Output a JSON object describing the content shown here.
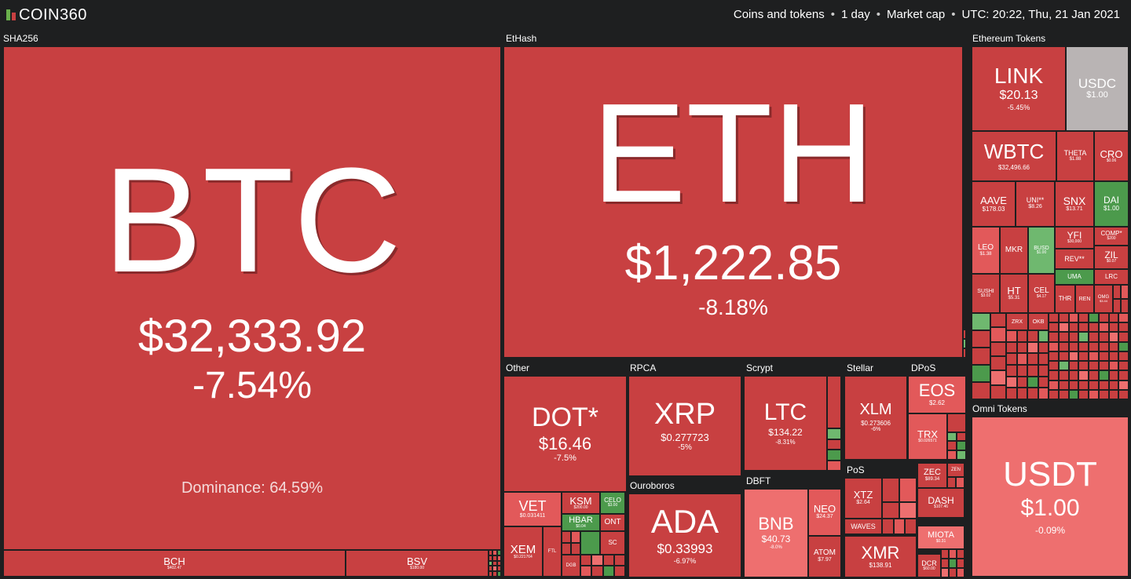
{
  "header": {
    "logo_text": "COIN360",
    "filters": [
      "Coins and tokens",
      "1 day",
      "Market cap"
    ],
    "timestamp": "UTC: 20:22, Thu, 21 Jan 2021",
    "separator": "•"
  },
  "groups": {
    "sha256": "SHA256",
    "ethash": "EtHash",
    "ethereum_tokens": "Ethereum Tokens",
    "other": "Other",
    "rpca": "RPCA",
    "scrypt": "Scrypt",
    "stellar": "Stellar",
    "dpos": "DPoS",
    "ouroboros": "Ouroboros",
    "dbft": "DBFT",
    "pos": "PoS",
    "omni_tokens": "Omni Tokens"
  },
  "coins": {
    "btc": {
      "symbol": "BTC",
      "price": "$32,333.92",
      "change": "-7.54%",
      "dominance": "Dominance: 64.59%"
    },
    "bch": {
      "symbol": "BCH",
      "price": "$402.47"
    },
    "bsv": {
      "symbol": "BSV",
      "price": "$180.00"
    },
    "eth": {
      "symbol": "ETH",
      "price": "$1,222.85",
      "change": "-8.18%"
    },
    "link": {
      "symbol": "LINK",
      "price": "$20.13",
      "change": "-5.45%"
    },
    "usdc": {
      "symbol": "USDC",
      "price": "$1.00"
    },
    "wbtc": {
      "symbol": "WBTC",
      "price": "$32,496.66"
    },
    "theta": {
      "symbol": "THETA",
      "price": "$1.88"
    },
    "cro": {
      "symbol": "CRO",
      "price": "$0.06"
    },
    "aave": {
      "symbol": "AAVE",
      "price": "$178.03"
    },
    "uni": {
      "symbol": "UNI**",
      "price": "$8.26"
    },
    "snx": {
      "symbol": "SNX",
      "price": "$13.71"
    },
    "dai": {
      "symbol": "DAI",
      "price": "$1.00"
    },
    "leo": {
      "symbol": "LEO",
      "price": "$1.38"
    },
    "mkr": {
      "symbol": "MKR"
    },
    "busd": {
      "symbol": "BUSD",
      "price": "$1.00"
    },
    "yfi": {
      "symbol": "YFI",
      "price": "$30,000"
    },
    "comp": {
      "symbol": "COMP*",
      "price": "$200"
    },
    "rev": {
      "symbol": "REV**"
    },
    "zil": {
      "symbol": "ZIL",
      "price": "$0.07"
    },
    "uma": {
      "symbol": "UMA"
    },
    "lrc": {
      "symbol": "LRC"
    },
    "sushi": {
      "symbol": "SUSHI",
      "price": "$3.02"
    },
    "ht": {
      "symbol": "HT",
      "price": "$5.31"
    },
    "cel": {
      "symbol": "CEL",
      "price": "$4.17"
    },
    "thr": {
      "symbol": "THR"
    },
    "ren": {
      "symbol": "REN"
    },
    "omg": {
      "symbol": "OMG",
      "price": "$3.44"
    },
    "zrx": {
      "symbol": "ZRX"
    },
    "okb": {
      "symbol": "OKB"
    },
    "dot": {
      "symbol": "DOT*",
      "price": "$16.46",
      "change": "-7.5%"
    },
    "vet": {
      "symbol": "VET",
      "price": "$0.031411"
    },
    "ksm": {
      "symbol": "KSM",
      "price": "$200.00"
    },
    "celo": {
      "symbol": "CELO",
      "price": "$3.00"
    },
    "hbar": {
      "symbol": "HBAR",
      "price": "$0.04"
    },
    "ont": {
      "symbol": "ONT"
    },
    "xem": {
      "symbol": "XEM",
      "price": "$0.221764"
    },
    "ftl": {
      "symbol": "FTL"
    },
    "sc": {
      "symbol": "SC"
    },
    "dgb": {
      "symbol": "DGB"
    },
    "xrp": {
      "symbol": "XRP",
      "price": "$0.277723",
      "change": "-5%"
    },
    "ltc": {
      "symbol": "LTC",
      "price": "$134.22",
      "change": "-8.31%"
    },
    "xlm": {
      "symbol": "XLM",
      "price": "$0.273606",
      "change": "-6%"
    },
    "eos": {
      "symbol": "EOS",
      "price": "$2.62"
    },
    "trx": {
      "symbol": "TRX",
      "price": "$0.026571"
    },
    "ada": {
      "symbol": "ADA",
      "price": "$0.33993",
      "change": "-6.97%"
    },
    "bnb": {
      "symbol": "BNB",
      "price": "$40.73",
      "change": "-8.0%"
    },
    "neo": {
      "symbol": "NEO",
      "price": "$24.37"
    },
    "atom": {
      "symbol": "ATOM",
      "price": "$7.97"
    },
    "xtz": {
      "symbol": "XTZ",
      "price": "$2.64"
    },
    "waves": {
      "symbol": "WAVES"
    },
    "xmr": {
      "symbol": "XMR",
      "price": "$138.91"
    },
    "zec": {
      "symbol": "ZEC",
      "price": "$89.34"
    },
    "zen": {
      "symbol": "ZEN"
    },
    "dash": {
      "symbol": "DASH",
      "price": "$107.46"
    },
    "miota": {
      "symbol": "MIOTA",
      "price": "$0.31"
    },
    "dcr": {
      "symbol": "DCR",
      "price": "$60.00"
    },
    "usdt": {
      "symbol": "USDT",
      "price": "$1.00",
      "change": "-0.09%"
    }
  }
}
